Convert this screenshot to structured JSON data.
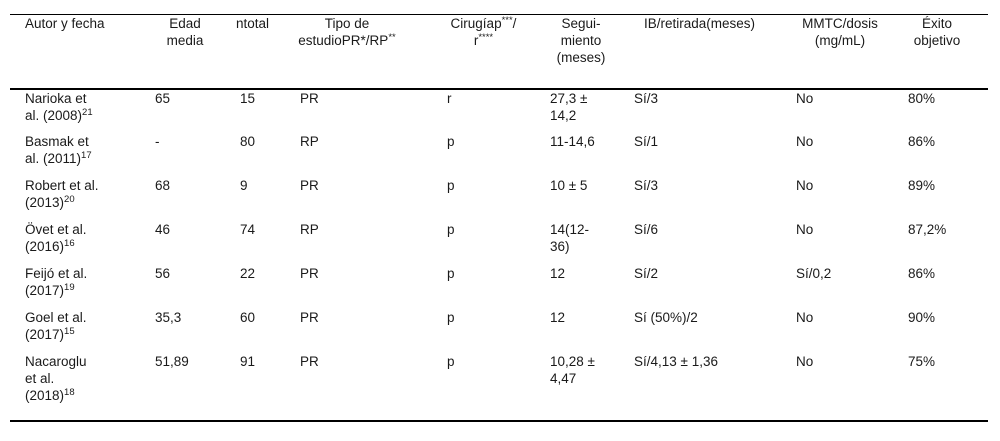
{
  "colors": {
    "background": "#ffffff",
    "text": "#1a1a1a",
    "rule": "#000000"
  },
  "table": {
    "columns": [
      {
        "name": "autor-y-fecha",
        "header": [
          {
            "t": "Autor y fecha"
          }
        ]
      },
      {
        "name": "edad-media",
        "header": [
          {
            "t": "Edad"
          },
          {
            "br": true
          },
          {
            "t": "media"
          }
        ]
      },
      {
        "name": "ntotal",
        "header": [
          {
            "t": "ntotal"
          }
        ]
      },
      {
        "name": "tipo-de-estudio",
        "header": [
          {
            "t": "Tipo de"
          },
          {
            "br": true
          },
          {
            "t": "estudioPR*/RP"
          },
          {
            "sup": "**"
          }
        ]
      },
      {
        "name": "cirugia",
        "header": [
          {
            "t": "Cirugíap"
          },
          {
            "sup": "***"
          },
          {
            "t": "/"
          },
          {
            "br": true
          },
          {
            "t": "r"
          },
          {
            "sup": "****"
          }
        ]
      },
      {
        "name": "seguimiento-meses",
        "header": [
          {
            "t": "Segui-"
          },
          {
            "br": true
          },
          {
            "t": "miento"
          },
          {
            "br": true
          },
          {
            "t": "(meses)"
          }
        ]
      },
      {
        "name": "ib-retirada-meses",
        "header": [
          {
            "t": "IB/retirada(meses)"
          }
        ]
      },
      {
        "name": "mmtc-dosis",
        "header": [
          {
            "t": "MMTC/dosis"
          },
          {
            "br": true
          },
          {
            "t": "(mg/mL)"
          }
        ]
      },
      {
        "name": "exito-objetivo",
        "header": [
          {
            "t": "Éxito"
          },
          {
            "br": true
          },
          {
            "t": "objetivo"
          }
        ]
      }
    ],
    "rows": [
      {
        "name": "narioka-2008",
        "cells": [
          [
            {
              "t": "Narioka et"
            },
            {
              "br": true
            },
            {
              "t": "al. (2008)"
            },
            {
              "sup": "21"
            }
          ],
          [
            {
              "t": "65"
            }
          ],
          [
            {
              "t": "15"
            }
          ],
          [
            {
              "t": "PR"
            }
          ],
          [
            {
              "t": "r"
            }
          ],
          [
            {
              "t": "27,3 ±"
            },
            {
              "br": true
            },
            {
              "t": "14,2"
            }
          ],
          [
            {
              "t": "Sí/3"
            }
          ],
          [
            {
              "t": "No"
            }
          ],
          [
            {
              "t": "80%"
            }
          ]
        ]
      },
      {
        "name": "basmak-2011",
        "cells": [
          [
            {
              "t": "Basmak et"
            },
            {
              "br": true
            },
            {
              "t": "al. (2011)"
            },
            {
              "sup": "17"
            }
          ],
          [
            {
              "t": "-"
            }
          ],
          [
            {
              "t": "80"
            }
          ],
          [
            {
              "t": "RP"
            }
          ],
          [
            {
              "t": "p"
            }
          ],
          [
            {
              "t": "11-14,6"
            }
          ],
          [
            {
              "t": "Sí/1"
            }
          ],
          [
            {
              "t": "No"
            }
          ],
          [
            {
              "t": "86%"
            }
          ]
        ]
      },
      {
        "name": "robert-2013",
        "cells": [
          [
            {
              "t": "Robert et al."
            },
            {
              "br": true
            },
            {
              "t": "(2013)"
            },
            {
              "sup": "20"
            }
          ],
          [
            {
              "t": "68"
            }
          ],
          [
            {
              "t": "9"
            }
          ],
          [
            {
              "t": "PR"
            }
          ],
          [
            {
              "t": "p"
            }
          ],
          [
            {
              "t": "10 ± 5"
            }
          ],
          [
            {
              "t": "Sí/3"
            }
          ],
          [
            {
              "t": "No"
            }
          ],
          [
            {
              "t": "89%"
            }
          ]
        ]
      },
      {
        "name": "ovet-2016",
        "cells": [
          [
            {
              "t": "Övet et al."
            },
            {
              "br": true
            },
            {
              "t": "(2016)"
            },
            {
              "sup": "16"
            }
          ],
          [
            {
              "t": "46"
            }
          ],
          [
            {
              "t": "74"
            }
          ],
          [
            {
              "t": "RP"
            }
          ],
          [
            {
              "t": "p"
            }
          ],
          [
            {
              "t": "14(12-"
            },
            {
              "br": true
            },
            {
              "t": "36)"
            }
          ],
          [
            {
              "t": "Sí/6"
            }
          ],
          [
            {
              "t": "No"
            }
          ],
          [
            {
              "t": "87,2%"
            }
          ]
        ]
      },
      {
        "name": "feijo-2017",
        "cells": [
          [
            {
              "t": "Feijó et al."
            },
            {
              "br": true
            },
            {
              "t": "(2017)"
            },
            {
              "sup": "19"
            }
          ],
          [
            {
              "t": "56"
            }
          ],
          [
            {
              "t": "22"
            }
          ],
          [
            {
              "t": "PR"
            }
          ],
          [
            {
              "t": "p"
            }
          ],
          [
            {
              "t": "12"
            }
          ],
          [
            {
              "t": "Sí/2"
            }
          ],
          [
            {
              "t": "Sí/0,2"
            }
          ],
          [
            {
              "t": "86%"
            }
          ]
        ]
      },
      {
        "name": "goel-2017",
        "cells": [
          [
            {
              "t": "Goel et al."
            },
            {
              "br": true
            },
            {
              "t": "(2017)"
            },
            {
              "sup": "15"
            }
          ],
          [
            {
              "t": "35,3"
            }
          ],
          [
            {
              "t": "60"
            }
          ],
          [
            {
              "t": "PR"
            }
          ],
          [
            {
              "t": "p"
            }
          ],
          [
            {
              "t": "12"
            }
          ],
          [
            {
              "t": "Sí (50%)/2"
            }
          ],
          [
            {
              "t": "No"
            }
          ],
          [
            {
              "t": "90%"
            }
          ]
        ]
      },
      {
        "name": "nacaroglu-2018",
        "cells": [
          [
            {
              "t": "Nacaroglu"
            },
            {
              "br": true
            },
            {
              "t": "et al."
            },
            {
              "br": true
            },
            {
              "t": "(2018)"
            },
            {
              "sup": "18"
            }
          ],
          [
            {
              "t": "51,89"
            }
          ],
          [
            {
              "t": "91"
            }
          ],
          [
            {
              "t": "PR"
            }
          ],
          [
            {
              "t": "p"
            }
          ],
          [
            {
              "t": "10,28 ±"
            },
            {
              "br": true
            },
            {
              "t": "4,47"
            }
          ],
          [
            {
              "t": "Sí/4,13 ± 1,36"
            }
          ],
          [
            {
              "t": "No"
            }
          ],
          [
            {
              "t": "75%"
            }
          ]
        ]
      }
    ]
  }
}
